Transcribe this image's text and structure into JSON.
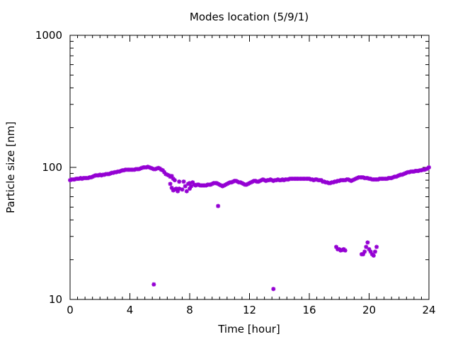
{
  "chart_data": {
    "type": "scatter",
    "title": "Modes location (5/9/1)",
    "xlabel": "Time [hour]",
    "ylabel": "Particle size [nm]",
    "xlim": [
      0,
      24
    ],
    "ylim": [
      10,
      1000
    ],
    "yscale": "log",
    "x_ticks": [
      "0",
      "4",
      "8",
      "12",
      "16",
      "20",
      "24"
    ],
    "y_ticks": [
      "10",
      "100",
      "1000"
    ],
    "marker_color": "#9400d3",
    "marker": "asterisk",
    "grid": false,
    "series": [
      {
        "main_mode": [
          [
            0,
            80
          ],
          [
            0.1,
            81
          ],
          [
            0.2,
            81
          ],
          [
            0.3,
            81
          ],
          [
            0.4,
            82
          ],
          [
            0.5,
            82
          ],
          [
            0.6,
            82
          ],
          [
            0.7,
            83
          ],
          [
            0.8,
            82
          ],
          [
            0.9,
            83
          ],
          [
            1.0,
            83
          ],
          [
            1.1,
            83
          ],
          [
            1.2,
            83
          ],
          [
            1.3,
            84
          ],
          [
            1.4,
            84
          ],
          [
            1.5,
            85
          ],
          [
            1.6,
            86
          ],
          [
            1.7,
            87
          ],
          [
            1.8,
            87
          ],
          [
            1.9,
            87
          ],
          [
            2.0,
            88
          ],
          [
            2.1,
            87
          ],
          [
            2.2,
            88
          ],
          [
            2.3,
            88
          ],
          [
            2.4,
            89
          ],
          [
            2.5,
            89
          ],
          [
            2.6,
            89
          ],
          [
            2.7,
            90
          ],
          [
            2.8,
            91
          ],
          [
            2.9,
            91
          ],
          [
            3.0,
            92
          ],
          [
            3.1,
            92
          ],
          [
            3.2,
            93
          ],
          [
            3.3,
            93
          ],
          [
            3.4,
            94
          ],
          [
            3.5,
            95
          ],
          [
            3.6,
            95
          ],
          [
            3.7,
            96
          ],
          [
            3.8,
            96
          ],
          [
            3.9,
            96
          ],
          [
            4.0,
            96
          ],
          [
            4.1,
            96
          ],
          [
            4.2,
            96
          ],
          [
            4.3,
            96
          ],
          [
            4.4,
            97
          ],
          [
            4.5,
            97
          ],
          [
            4.6,
            97
          ],
          [
            4.7,
            98
          ],
          [
            4.8,
            99
          ],
          [
            4.9,
            100
          ],
          [
            5.0,
            100
          ],
          [
            5.1,
            100
          ],
          [
            5.2,
            101
          ],
          [
            5.3,
            100
          ],
          [
            5.4,
            99
          ],
          [
            5.5,
            98
          ],
          [
            5.6,
            97
          ],
          [
            5.7,
            97
          ],
          [
            5.8,
            98
          ],
          [
            5.9,
            99
          ],
          [
            6.0,
            98
          ],
          [
            6.1,
            96
          ],
          [
            6.2,
            95
          ],
          [
            6.3,
            92
          ],
          [
            6.4,
            89
          ],
          [
            6.5,
            88
          ],
          [
            6.6,
            87
          ],
          [
            6.7,
            85
          ],
          [
            6.8,
            86
          ],
          [
            6.9,
            82
          ],
          [
            7.0,
            80
          ],
          [
            7.3,
            78
          ],
          [
            7.6,
            78
          ],
          [
            7.9,
            75
          ],
          [
            8.0,
            76
          ],
          [
            8.2,
            77
          ],
          [
            8.3,
            74
          ],
          [
            8.4,
            73
          ],
          [
            8.5,
            74
          ],
          [
            8.6,
            74
          ],
          [
            8.7,
            73
          ],
          [
            8.8,
            73
          ],
          [
            8.9,
            73
          ],
          [
            9.0,
            73
          ],
          [
            9.1,
            73
          ],
          [
            9.2,
            74
          ],
          [
            9.3,
            74
          ],
          [
            9.4,
            74
          ],
          [
            9.5,
            75
          ],
          [
            9.6,
            76
          ],
          [
            9.7,
            76
          ],
          [
            9.8,
            76
          ],
          [
            9.9,
            75
          ],
          [
            10.0,
            74
          ],
          [
            10.1,
            73
          ],
          [
            10.2,
            72
          ],
          [
            10.3,
            73
          ],
          [
            10.4,
            74
          ],
          [
            10.5,
            75
          ],
          [
            10.6,
            76
          ],
          [
            10.7,
            77
          ],
          [
            10.8,
            77
          ],
          [
            10.9,
            78
          ],
          [
            11.0,
            79
          ],
          [
            11.1,
            79
          ],
          [
            11.2,
            78
          ],
          [
            11.3,
            77
          ],
          [
            11.4,
            77
          ],
          [
            11.5,
            76
          ],
          [
            11.6,
            75
          ],
          [
            11.7,
            74
          ],
          [
            11.8,
            74
          ],
          [
            11.9,
            75
          ],
          [
            12.0,
            76
          ],
          [
            12.1,
            77
          ],
          [
            12.2,
            78
          ],
          [
            12.3,
            79
          ],
          [
            12.4,
            79
          ],
          [
            12.5,
            78
          ],
          [
            12.6,
            78
          ],
          [
            12.7,
            79
          ],
          [
            12.8,
            80
          ],
          [
            12.9,
            81
          ],
          [
            13.0,
            80
          ],
          [
            13.1,
            79
          ],
          [
            13.2,
            80
          ],
          [
            13.3,
            80
          ],
          [
            13.4,
            81
          ],
          [
            13.5,
            80
          ],
          [
            13.6,
            79
          ],
          [
            13.7,
            80
          ],
          [
            13.8,
            80
          ],
          [
            13.9,
            81
          ],
          [
            14.0,
            80
          ],
          [
            14.1,
            80
          ],
          [
            14.2,
            81
          ],
          [
            14.3,
            80
          ],
          [
            14.4,
            81
          ],
          [
            14.5,
            81
          ],
          [
            14.6,
            81
          ],
          [
            14.7,
            82
          ],
          [
            14.8,
            82
          ],
          [
            14.9,
            82
          ],
          [
            15.0,
            82
          ],
          [
            15.1,
            82
          ],
          [
            15.2,
            82
          ],
          [
            15.3,
            82
          ],
          [
            15.4,
            82
          ],
          [
            15.5,
            82
          ],
          [
            15.6,
            82
          ],
          [
            15.7,
            82
          ],
          [
            15.8,
            82
          ],
          [
            15.9,
            82
          ],
          [
            16.0,
            82
          ],
          [
            16.1,
            81
          ],
          [
            16.2,
            81
          ],
          [
            16.3,
            80
          ],
          [
            16.4,
            81
          ],
          [
            16.5,
            81
          ],
          [
            16.6,
            80
          ],
          [
            16.7,
            80
          ],
          [
            16.8,
            80
          ],
          [
            16.9,
            78
          ],
          [
            17.0,
            78
          ],
          [
            17.1,
            77
          ],
          [
            17.2,
            77
          ],
          [
            17.3,
            76
          ],
          [
            17.4,
            76
          ],
          [
            17.5,
            77
          ],
          [
            17.6,
            77
          ],
          [
            17.7,
            78
          ],
          [
            17.8,
            78
          ],
          [
            17.9,
            79
          ],
          [
            18.0,
            79
          ],
          [
            18.1,
            80
          ],
          [
            18.2,
            80
          ],
          [
            18.3,
            80
          ],
          [
            18.4,
            80
          ],
          [
            18.5,
            81
          ],
          [
            18.6,
            81
          ],
          [
            18.7,
            80
          ],
          [
            18.8,
            79
          ],
          [
            18.9,
            80
          ],
          [
            19.0,
            81
          ],
          [
            19.1,
            82
          ],
          [
            19.2,
            83
          ],
          [
            19.3,
            84
          ],
          [
            19.4,
            84
          ],
          [
            19.5,
            84
          ],
          [
            19.6,
            84
          ],
          [
            19.7,
            83
          ],
          [
            19.8,
            83
          ],
          [
            19.9,
            83
          ],
          [
            20.0,
            82
          ],
          [
            20.1,
            82
          ],
          [
            20.2,
            81
          ],
          [
            20.3,
            81
          ],
          [
            20.4,
            81
          ],
          [
            20.5,
            81
          ],
          [
            20.6,
            81
          ],
          [
            20.7,
            82
          ],
          [
            20.8,
            82
          ],
          [
            20.9,
            82
          ],
          [
            21.0,
            82
          ],
          [
            21.1,
            82
          ],
          [
            21.2,
            82
          ],
          [
            21.3,
            83
          ],
          [
            21.4,
            83
          ],
          [
            21.5,
            83
          ],
          [
            21.6,
            84
          ],
          [
            21.7,
            85
          ],
          [
            21.8,
            85
          ],
          [
            21.9,
            86
          ],
          [
            22.0,
            87
          ],
          [
            22.1,
            88
          ],
          [
            22.2,
            88
          ],
          [
            22.3,
            89
          ],
          [
            22.4,
            90
          ],
          [
            22.5,
            91
          ],
          [
            22.6,
            92
          ],
          [
            22.7,
            92
          ],
          [
            22.8,
            93
          ],
          [
            22.9,
            93
          ],
          [
            23.0,
            93
          ],
          [
            23.1,
            94
          ],
          [
            23.2,
            94
          ],
          [
            23.3,
            94
          ],
          [
            23.4,
            95
          ],
          [
            23.5,
            95
          ],
          [
            23.6,
            96
          ],
          [
            23.7,
            96
          ],
          [
            23.8,
            97
          ],
          [
            23.9,
            98
          ],
          [
            24.0,
            100
          ]
        ]
      },
      {
        "scatter_low": [
          [
            6.7,
            75
          ],
          [
            6.8,
            70
          ],
          [
            6.9,
            67
          ],
          [
            7.0,
            68
          ],
          [
            7.1,
            69
          ],
          [
            7.2,
            66
          ],
          [
            7.3,
            69
          ],
          [
            7.5,
            68
          ],
          [
            7.7,
            72
          ],
          [
            7.8,
            66
          ],
          [
            8.0,
            69
          ],
          [
            8.1,
            72
          ]
        ]
      },
      {
        "outliers": [
          [
            5.6,
            13
          ],
          [
            9.9,
            51
          ],
          [
            13.6,
            12
          ],
          [
            17.8,
            25
          ],
          [
            17.9,
            24
          ],
          [
            18.0,
            24
          ],
          [
            18.1,
            23.5
          ],
          [
            18.2,
            23.7
          ],
          [
            18.3,
            24
          ],
          [
            18.4,
            23.5
          ],
          [
            19.5,
            22
          ],
          [
            19.6,
            22
          ],
          [
            19.7,
            23
          ],
          [
            19.8,
            25
          ],
          [
            19.9,
            27
          ],
          [
            20.0,
            24
          ],
          [
            20.1,
            23
          ],
          [
            20.2,
            22
          ],
          [
            20.3,
            21.5
          ],
          [
            20.4,
            23
          ],
          [
            20.5,
            25
          ]
        ]
      }
    ]
  }
}
